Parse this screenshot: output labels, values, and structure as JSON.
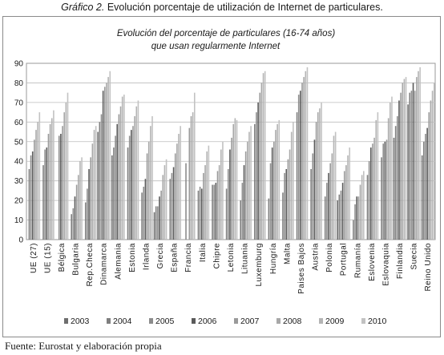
{
  "caption": {
    "prefix": "Gráfico 2.",
    "text": "Evolución porcentaje de utilización de Internet de particulares."
  },
  "source": "Fuente: Eurostat y elaboración propia",
  "chart_data": {
    "type": "bar",
    "title": "Evolución del porcentaje de particulares (16-74 años)",
    "subtitle": "que usan regularmente Internet",
    "ylim": [
      0,
      90
    ],
    "yticks": [
      0,
      10,
      20,
      30,
      40,
      50,
      60,
      70,
      80,
      90
    ],
    "grid": true,
    "legend_position": "bottom",
    "series_colors": [
      "#6e6e6e",
      "#7f7f7f",
      "#8c8c8c",
      "#5a5a5a",
      "#9a9a9a",
      "#a8a8a8",
      "#b4b4b4",
      "#c2c2c2"
    ],
    "categories": [
      "UE (27)",
      "UE (15)",
      "Bélgica",
      "Bulgaria",
      "Rep.Checa",
      "Dinamarca",
      "Alemania",
      "Estonia",
      "Irlanda",
      "Grecia",
      "España",
      "Francia",
      "Italia",
      "Chipre",
      "Letonia",
      "Lituania",
      "Luxemburg",
      "Hungría",
      "Malta",
      "Paises Bajos",
      "Austria",
      "Polonia",
      "Portugal",
      "Rumanía",
      "Eslovenia",
      "Eslovaquia",
      "Finlandia",
      "Suecia",
      "Reino Unido"
    ],
    "series": [
      {
        "name": "2003",
        "values": [
          null,
          null,
          null,
          null,
          null,
          55,
          43,
          null,
          null,
          14,
          null,
          null,
          null,
          null,
          null,
          null,
          null,
          null,
          null,
          null,
          null,
          null,
          20,
          null,
          null,
          null,
          52,
          69,
          43
        ]
      },
      {
        "name": "2004",
        "values": [
          36,
          38,
          null,
          13,
          19,
          60,
          47,
          47,
          24,
          17,
          31,
          null,
          25,
          28,
          26,
          20,
          59,
          21,
          24,
          65,
          36,
          22,
          23,
          10,
          33,
          42,
          58,
          75,
          50
        ]
      },
      {
        "name": "2005",
        "values": [
          43,
          46,
          53,
          16,
          26,
          64,
          53,
          53,
          27,
          17,
          34,
          39,
          27,
          28,
          36,
          29,
          65,
          39,
          34,
          74,
          44,
          29,
          25,
          18,
          40,
          49,
          63,
          76,
          54
        ]
      },
      {
        "name": "2006",
        "values": [
          45,
          47,
          54,
          22,
          36,
          76,
          59,
          56,
          31,
          22,
          37,
          null,
          26,
          29,
          46,
          38,
          70,
          47,
          36,
          76,
          51,
          34,
          29,
          22,
          47,
          50,
          71,
          80,
          57
        ]
      },
      {
        "name": "2007",
        "values": [
          51,
          54,
          58,
          28,
          42,
          78,
          64,
          58,
          44,
          25,
          44,
          57,
          34,
          35,
          52,
          45,
          75,
          50,
          41,
          80,
          60,
          39,
          35,
          22,
          49,
          51,
          75,
          76,
          65
        ]
      },
      {
        "name": "2008",
        "values": [
          56,
          59,
          65,
          33,
          49,
          80,
          68,
          63,
          50,
          33,
          49,
          63,
          38,
          38,
          59,
          50,
          80,
          56,
          46,
          83,
          65,
          44,
          38,
          28,
          52,
          62,
          80,
          83,
          71
        ]
      },
      {
        "name": "2009",
        "values": [
          60,
          62,
          70,
          40,
          56,
          83,
          73,
          68,
          58,
          38,
          54,
          65,
          45,
          46,
          62,
          55,
          85,
          59,
          55,
          86,
          67,
          53,
          43,
          33,
          61,
          70,
          82,
          86,
          76
        ]
      },
      {
        "name": "2010",
        "values": [
          65,
          66,
          75,
          42,
          58,
          86,
          74,
          71,
          63,
          41,
          58,
          75,
          48,
          50,
          61,
          58,
          86,
          61,
          60,
          88,
          70,
          55,
          47,
          35,
          65,
          73,
          83,
          88,
          80
        ]
      }
    ]
  }
}
